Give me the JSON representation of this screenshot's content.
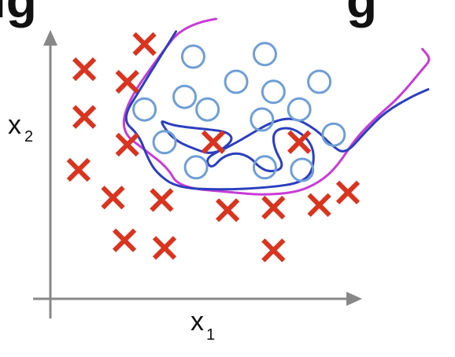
{
  "chart_data": {
    "type": "scatter",
    "title": "",
    "xlabel": "x",
    "xlabel_sub": "1",
    "ylabel": "x",
    "ylabel_sub": "2",
    "grid": false,
    "legend": "none",
    "xlim": [
      0,
      10
    ],
    "ylim": [
      0,
      10
    ],
    "series": [
      {
        "marker": "cross",
        "color": "#d9341f",
        "points": [
          [
            2.9,
            9.5
          ],
          [
            0.8,
            8.5
          ],
          [
            2.3,
            8.0
          ],
          [
            0.8,
            6.6
          ],
          [
            2.3,
            5.5
          ],
          [
            5.3,
            5.6
          ],
          [
            8.3,
            5.6
          ],
          [
            0.6,
            4.5
          ],
          [
            1.8,
            3.4
          ],
          [
            3.5,
            3.3
          ],
          [
            5.8,
            2.9
          ],
          [
            7.4,
            3.0
          ],
          [
            9.0,
            3.1
          ],
          [
            10.0,
            3.6
          ],
          [
            2.2,
            1.7
          ],
          [
            3.6,
            1.4
          ],
          [
            7.4,
            1.3
          ]
        ]
      },
      {
        "marker": "circle",
        "color": "#6f9ed6",
        "points": [
          [
            4.6,
            9.0
          ],
          [
            7.1,
            9.1
          ],
          [
            6.1,
            8.0
          ],
          [
            9.0,
            8.0
          ],
          [
            4.3,
            7.4
          ],
          [
            7.4,
            7.6
          ],
          [
            2.9,
            6.9
          ],
          [
            5.1,
            6.9
          ],
          [
            8.3,
            6.9
          ],
          [
            7.0,
            6.5
          ],
          [
            3.6,
            5.6
          ],
          [
            9.5,
            5.9
          ],
          [
            4.7,
            4.6
          ],
          [
            7.1,
            4.6
          ],
          [
            8.4,
            4.5
          ]
        ]
      }
    ],
    "boundaries": [
      {
        "color": "#c83cd6",
        "points": [
          [
            5.4,
            10.5
          ],
          [
            4.3,
            10.3
          ],
          [
            3.4,
            9.0
          ],
          [
            2.3,
            7.2
          ],
          [
            2.1,
            6.0
          ],
          [
            2.9,
            5.3
          ],
          [
            3.7,
            4.6
          ],
          [
            4.1,
            3.8
          ],
          [
            6.0,
            3.6
          ],
          [
            7.0,
            3.5
          ],
          [
            8.2,
            3.6
          ],
          [
            9.0,
            4.0
          ],
          [
            9.6,
            4.6
          ],
          [
            10.3,
            5.8
          ],
          [
            11.1,
            6.7
          ],
          [
            11.8,
            7.4
          ],
          [
            12.6,
            8.5
          ],
          [
            12.9,
            8.9
          ],
          [
            12.6,
            9.3
          ]
        ]
      },
      {
        "color": "#2b3fbf",
        "points": [
          [
            4.0,
            10.0
          ],
          [
            3.4,
            8.9
          ],
          [
            2.8,
            7.8
          ],
          [
            2.1,
            6.5
          ],
          [
            2.7,
            5.9
          ],
          [
            3.0,
            5.0
          ],
          [
            3.3,
            4.4
          ],
          [
            4.0,
            3.8
          ],
          [
            5.5,
            3.7
          ],
          [
            7.3,
            3.8
          ],
          [
            8.4,
            4.0
          ],
          [
            8.8,
            4.5
          ],
          [
            8.8,
            5.5
          ],
          [
            8.1,
            6.2
          ],
          [
            7.4,
            6.1
          ],
          [
            7.4,
            5.4
          ],
          [
            7.8,
            4.6
          ],
          [
            7.3,
            4.4
          ],
          [
            6.9,
            4.6
          ],
          [
            6.6,
            5.0
          ],
          [
            6.1,
            5.2
          ],
          [
            5.6,
            5.0
          ],
          [
            5.3,
            4.6
          ],
          [
            5.1,
            4.7
          ],
          [
            5.1,
            5.0
          ],
          [
            5.6,
            5.3
          ],
          [
            6.0,
            5.7
          ],
          [
            5.8,
            6.0
          ],
          [
            5.2,
            6.1
          ],
          [
            4.3,
            6.2
          ],
          [
            3.8,
            6.3
          ],
          [
            3.4,
            6.5
          ],
          [
            3.9,
            5.7
          ],
          [
            4.7,
            5.3
          ],
          [
            5.3,
            5.1
          ],
          [
            6.3,
            5.7
          ],
          [
            7.3,
            6.4
          ],
          [
            8.1,
            6.6
          ],
          [
            8.9,
            6.1
          ],
          [
            9.4,
            5.5
          ],
          [
            9.9,
            5.1
          ],
          [
            10.6,
            6.0
          ],
          [
            11.3,
            6.8
          ],
          [
            12.2,
            7.4
          ],
          [
            12.8,
            7.7
          ]
        ]
      }
    ]
  }
}
